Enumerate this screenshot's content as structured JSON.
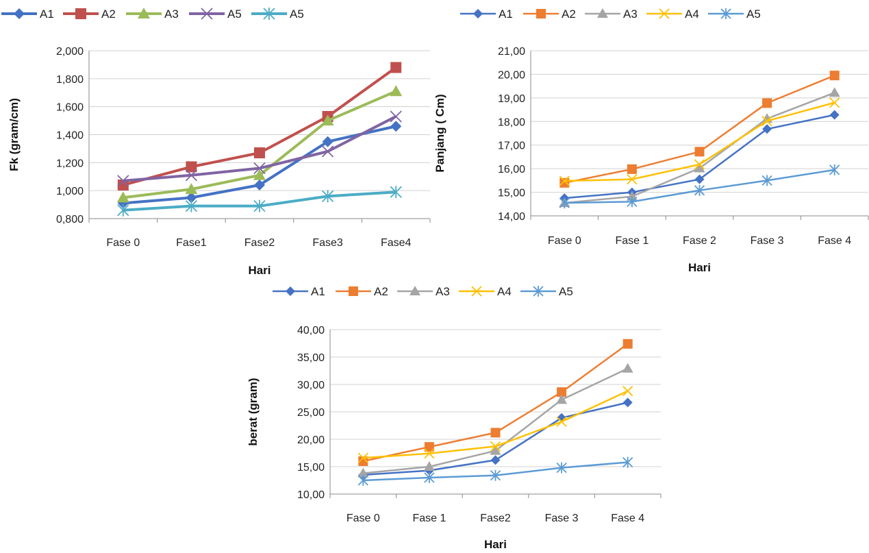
{
  "chart_data": [
    {
      "type": "line",
      "xlabel": "Hari",
      "ylabel": "Fk (gram/cm)",
      "categories": [
        "Fase 0",
        "Fase1",
        "Fase2",
        "Fase3",
        "Fase4"
      ],
      "yticks": [
        "0,800",
        "1,000",
        "1,200",
        "1,400",
        "1,600",
        "1,800",
        "2,000"
      ],
      "ylim": [
        0.8,
        2.0
      ],
      "legend": "top",
      "grid": true,
      "series": [
        {
          "name": "A1",
          "color": "#4472C4",
          "marker": "diamond",
          "values": [
            0.91,
            0.95,
            1.04,
            1.35,
            1.46
          ]
        },
        {
          "name": "A2",
          "color": "#C0504D",
          "marker": "square",
          "values": [
            1.04,
            1.17,
            1.27,
            1.53,
            1.88
          ]
        },
        {
          "name": "A3",
          "color": "#9BBB59",
          "marker": "triangle",
          "values": [
            0.95,
            1.01,
            1.11,
            1.5,
            1.71
          ]
        },
        {
          "name": "A5",
          "color": "#8064A2",
          "marker": "x",
          "values": [
            1.07,
            1.11,
            1.16,
            1.28,
            1.53
          ]
        },
        {
          "name": "A5",
          "color": "#4BACC6",
          "marker": "star",
          "values": [
            0.86,
            0.89,
            0.89,
            0.96,
            0.99
          ]
        }
      ]
    },
    {
      "type": "line",
      "xlabel": "Hari",
      "ylabel": "Panjang ( Cm)",
      "categories": [
        "Fase 0",
        "Fase 1",
        "Fase 2",
        "Fase 3",
        "Fase 4"
      ],
      "yticks": [
        "14,00",
        "15,00",
        "16,00",
        "17,00",
        "18,00",
        "19,00",
        "20,00",
        "21,00"
      ],
      "ylim": [
        14,
        21
      ],
      "legend": "top",
      "grid": true,
      "series": [
        {
          "name": "A1",
          "color": "#4472C4",
          "marker": "diamond",
          "values": [
            14.75,
            15.0,
            15.55,
            17.68,
            18.28
          ]
        },
        {
          "name": "A2",
          "color": "#ED7D31",
          "marker": "square",
          "values": [
            15.4,
            15.98,
            16.72,
            18.78,
            19.95
          ]
        },
        {
          "name": "A3",
          "color": "#A5A5A5",
          "marker": "triangle",
          "values": [
            14.55,
            14.82,
            16.02,
            18.12,
            19.22
          ]
        },
        {
          "name": "A4",
          "color": "#FFC000",
          "marker": "x",
          "values": [
            15.48,
            15.55,
            16.18,
            18.02,
            18.8
          ]
        },
        {
          "name": "A5",
          "color": "#5B9BD5",
          "marker": "star",
          "values": [
            14.55,
            14.6,
            15.08,
            15.5,
            15.95
          ]
        }
      ]
    },
    {
      "type": "line",
      "xlabel": "Hari",
      "ylabel": "berat (gram)",
      "categories": [
        "Fase 0",
        "Fase 1",
        "Fase2",
        "Fase 3",
        "Fase 4"
      ],
      "yticks": [
        "10,00",
        "15,00",
        "20,00",
        "25,00",
        "30,00",
        "35,00",
        "40,00"
      ],
      "ylim": [
        10,
        40
      ],
      "legend": "top",
      "grid": true,
      "series": [
        {
          "name": "A1",
          "color": "#4472C4",
          "marker": "diamond",
          "values": [
            13.5,
            14.3,
            16.2,
            23.9,
            26.7
          ]
        },
        {
          "name": "A2",
          "color": "#ED7D31",
          "marker": "square",
          "values": [
            16.0,
            18.6,
            21.2,
            28.6,
            37.4
          ]
        },
        {
          "name": "A3",
          "color": "#A5A5A5",
          "marker": "triangle",
          "values": [
            13.8,
            15.0,
            17.9,
            27.2,
            32.9
          ]
        },
        {
          "name": "A4",
          "color": "#FFC000",
          "marker": "x",
          "values": [
            16.6,
            17.4,
            18.7,
            23.2,
            28.8
          ]
        },
        {
          "name": "A5",
          "color": "#5B9BD5",
          "marker": "star",
          "values": [
            12.5,
            13.0,
            13.4,
            14.8,
            15.8
          ]
        }
      ]
    }
  ]
}
